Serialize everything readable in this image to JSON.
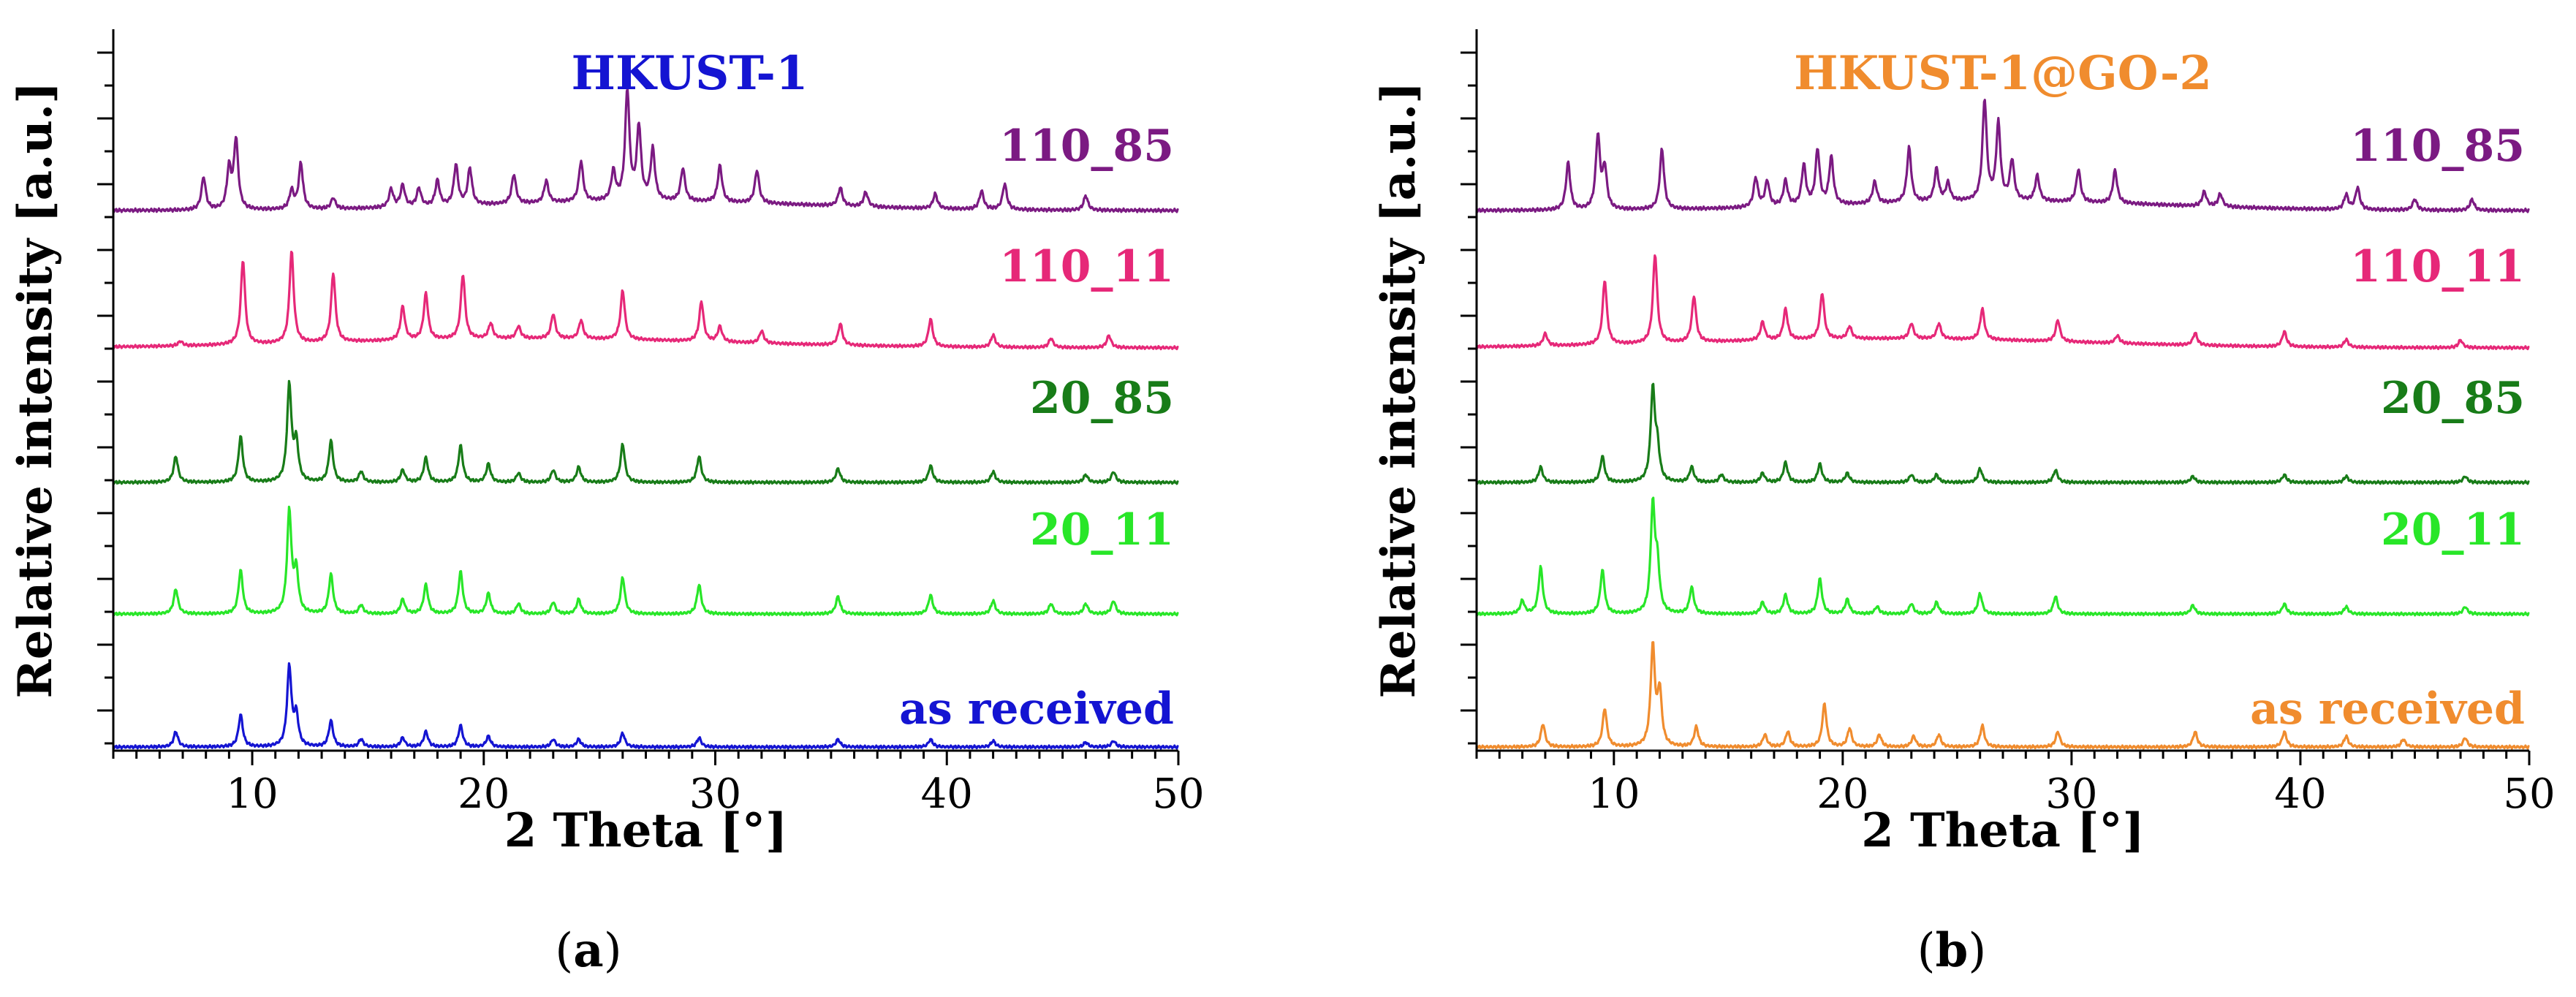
{
  "chart_data": [
    {
      "type": "line",
      "panel_caption": {
        "open": "(",
        "letter": "a",
        "close": ")"
      },
      "title": "HKUST-1",
      "title_color": "#1414d2",
      "xlabel": "2 Theta [°]",
      "ylabel": "Relative intensity [a.u.]",
      "xlim": [
        4,
        50
      ],
      "xticks": [
        10,
        20,
        30,
        40,
        50
      ],
      "series": [
        {
          "name": "110_85",
          "color": "#7b1a82",
          "baseline": 0.82,
          "peaks": [
            [
              7.9,
              0.18
            ],
            [
              9.3,
              0.38
            ],
            [
              9.0,
              0.22
            ],
            [
              11.7,
              0.1
            ],
            [
              12.1,
              0.25
            ],
            [
              13.5,
              0.06
            ],
            [
              16.0,
              0.1
            ],
            [
              16.5,
              0.12
            ],
            [
              17.2,
              0.1
            ],
            [
              18.0,
              0.14
            ],
            [
              18.8,
              0.22
            ],
            [
              19.4,
              0.2
            ],
            [
              21.3,
              0.16
            ],
            [
              22.7,
              0.12
            ],
            [
              24.2,
              0.22
            ],
            [
              25.6,
              0.16
            ],
            [
              26.2,
              0.6
            ],
            [
              26.7,
              0.4
            ],
            [
              27.3,
              0.28
            ],
            [
              28.6,
              0.18
            ],
            [
              30.2,
              0.2
            ],
            [
              31.8,
              0.18
            ],
            [
              35.4,
              0.1
            ],
            [
              36.5,
              0.08
            ],
            [
              39.5,
              0.08
            ],
            [
              41.5,
              0.1
            ],
            [
              42.5,
              0.14
            ],
            [
              46.0,
              0.08
            ]
          ]
        },
        {
          "name": "110_11",
          "color": "#e62878",
          "baseline": 0.62,
          "peaks": [
            [
              6.9,
              0.03
            ],
            [
              9.6,
              0.55
            ],
            [
              11.7,
              0.6
            ],
            [
              13.5,
              0.45
            ],
            [
              16.5,
              0.22
            ],
            [
              17.5,
              0.3
            ],
            [
              19.1,
              0.42
            ],
            [
              20.3,
              0.1
            ],
            [
              21.5,
              0.08
            ],
            [
              23.0,
              0.16
            ],
            [
              24.2,
              0.12
            ],
            [
              26.0,
              0.32
            ],
            [
              29.4,
              0.26
            ],
            [
              30.2,
              0.1
            ],
            [
              32.0,
              0.08
            ],
            [
              35.4,
              0.14
            ],
            [
              39.3,
              0.18
            ],
            [
              42.0,
              0.08
            ],
            [
              44.5,
              0.06
            ],
            [
              47.0,
              0.08
            ]
          ]
        },
        {
          "name": "20_85",
          "color": "#187c18",
          "baseline": 0.41,
          "peaks": [
            [
              6.7,
              0.17
            ],
            [
              9.5,
              0.3
            ],
            [
              11.6,
              0.63
            ],
            [
              11.9,
              0.25
            ],
            [
              13.4,
              0.27
            ],
            [
              14.7,
              0.07
            ],
            [
              16.5,
              0.08
            ],
            [
              17.5,
              0.16
            ],
            [
              19.0,
              0.24
            ],
            [
              20.2,
              0.12
            ],
            [
              21.5,
              0.06
            ],
            [
              23.0,
              0.08
            ],
            [
              24.1,
              0.1
            ],
            [
              26.0,
              0.25
            ],
            [
              29.3,
              0.17
            ],
            [
              35.3,
              0.09
            ],
            [
              39.3,
              0.11
            ],
            [
              42.0,
              0.07
            ],
            [
              46.0,
              0.05
            ],
            [
              47.2,
              0.07
            ]
          ]
        },
        {
          "name": "20_11",
          "color": "#28e628",
          "baseline": 0.21,
          "peaks": [
            [
              6.7,
              0.17
            ],
            [
              9.5,
              0.3
            ],
            [
              11.6,
              0.7
            ],
            [
              11.9,
              0.28
            ],
            [
              13.4,
              0.27
            ],
            [
              14.7,
              0.06
            ],
            [
              16.5,
              0.1
            ],
            [
              17.5,
              0.2
            ],
            [
              19.0,
              0.29
            ],
            [
              20.2,
              0.14
            ],
            [
              21.5,
              0.07
            ],
            [
              23.0,
              0.08
            ],
            [
              24.1,
              0.1
            ],
            [
              26.0,
              0.25
            ],
            [
              29.3,
              0.2
            ],
            [
              35.3,
              0.12
            ],
            [
              39.3,
              0.13
            ],
            [
              42.0,
              0.09
            ],
            [
              44.5,
              0.07
            ],
            [
              46.0,
              0.07
            ],
            [
              47.2,
              0.09
            ]
          ]
        },
        {
          "name": "as received",
          "color": "#1414d2",
          "baseline": 0.0,
          "peaks": [
            [
              6.7,
              0.1
            ],
            [
              9.5,
              0.21
            ],
            [
              11.6,
              0.52
            ],
            [
              11.9,
              0.2
            ],
            [
              13.4,
              0.17
            ],
            [
              14.7,
              0.05
            ],
            [
              16.5,
              0.06
            ],
            [
              17.5,
              0.1
            ],
            [
              19.0,
              0.14
            ],
            [
              20.2,
              0.07
            ],
            [
              23.0,
              0.05
            ],
            [
              24.1,
              0.05
            ],
            [
              26.0,
              0.09
            ],
            [
              29.3,
              0.06
            ],
            [
              35.3,
              0.05
            ],
            [
              39.3,
              0.05
            ],
            [
              42.0,
              0.04
            ],
            [
              46.0,
              0.03
            ],
            [
              47.2,
              0.04
            ]
          ]
        }
      ]
    },
    {
      "type": "line",
      "panel_caption": {
        "open": "(",
        "letter": "b",
        "close": ")"
      },
      "title": "HKUST-1@GO-2",
      "title_color": "#f08c2e",
      "xlabel": "2 Theta [°]",
      "ylabel": "Relative intensity [a.u.]",
      "xlim": [
        4,
        50
      ],
      "xticks": [
        10,
        20,
        30,
        40,
        50
      ],
      "series": [
        {
          "name": "110_85",
          "color": "#7b1a82",
          "baseline": 0.82,
          "peaks": [
            [
              8.0,
              0.26
            ],
            [
              9.3,
              0.4
            ],
            [
              9.6,
              0.22
            ],
            [
              12.1,
              0.33
            ],
            [
              16.2,
              0.16
            ],
            [
              16.7,
              0.14
            ],
            [
              17.5,
              0.14
            ],
            [
              18.3,
              0.22
            ],
            [
              18.9,
              0.3
            ],
            [
              19.5,
              0.26
            ],
            [
              21.4,
              0.12
            ],
            [
              22.9,
              0.3
            ],
            [
              24.1,
              0.18
            ],
            [
              24.6,
              0.1
            ],
            [
              26.2,
              0.55
            ],
            [
              26.8,
              0.42
            ],
            [
              27.4,
              0.22
            ],
            [
              28.5,
              0.14
            ],
            [
              30.3,
              0.18
            ],
            [
              31.9,
              0.18
            ],
            [
              35.8,
              0.08
            ],
            [
              36.5,
              0.07
            ],
            [
              42.0,
              0.08
            ],
            [
              42.5,
              0.12
            ],
            [
              45.0,
              0.06
            ],
            [
              47.5,
              0.06
            ]
          ]
        },
        {
          "name": "110_11",
          "color": "#e62878",
          "baseline": 0.62,
          "peaks": [
            [
              7.0,
              0.08
            ],
            [
              9.6,
              0.42
            ],
            [
              11.8,
              0.58
            ],
            [
              13.5,
              0.3
            ],
            [
              16.5,
              0.12
            ],
            [
              17.5,
              0.2
            ],
            [
              19.1,
              0.3
            ],
            [
              20.3,
              0.08
            ],
            [
              23.0,
              0.1
            ],
            [
              24.2,
              0.1
            ],
            [
              26.1,
              0.2
            ],
            [
              29.4,
              0.14
            ],
            [
              32.0,
              0.05
            ],
            [
              35.4,
              0.08
            ],
            [
              39.3,
              0.1
            ],
            [
              42.0,
              0.05
            ],
            [
              47.0,
              0.05
            ]
          ]
        },
        {
          "name": "20_85",
          "color": "#187c18",
          "baseline": 0.41,
          "peaks": [
            [
              6.8,
              0.1
            ],
            [
              9.5,
              0.17
            ],
            [
              11.7,
              0.6
            ],
            [
              11.9,
              0.2
            ],
            [
              13.4,
              0.1
            ],
            [
              14.7,
              0.05
            ],
            [
              16.5,
              0.06
            ],
            [
              17.5,
              0.13
            ],
            [
              19.0,
              0.12
            ],
            [
              20.2,
              0.06
            ],
            [
              23.0,
              0.05
            ],
            [
              24.1,
              0.05
            ],
            [
              26.0,
              0.09
            ],
            [
              29.3,
              0.08
            ],
            [
              35.3,
              0.04
            ],
            [
              39.3,
              0.05
            ],
            [
              42.0,
              0.04
            ],
            [
              47.2,
              0.04
            ]
          ]
        },
        {
          "name": "20_11",
          "color": "#28e628",
          "baseline": 0.21,
          "peaks": [
            [
              6.0,
              0.09
            ],
            [
              6.8,
              0.32
            ],
            [
              9.5,
              0.3
            ],
            [
              11.7,
              0.73
            ],
            [
              11.9,
              0.3
            ],
            [
              13.4,
              0.18
            ],
            [
              16.5,
              0.08
            ],
            [
              17.5,
              0.13
            ],
            [
              19.0,
              0.24
            ],
            [
              20.2,
              0.1
            ],
            [
              21.5,
              0.05
            ],
            [
              23.0,
              0.07
            ],
            [
              24.1,
              0.08
            ],
            [
              26.0,
              0.14
            ],
            [
              29.3,
              0.12
            ],
            [
              35.3,
              0.06
            ],
            [
              39.3,
              0.07
            ],
            [
              42.0,
              0.05
            ],
            [
              47.2,
              0.05
            ]
          ]
        },
        {
          "name": "as received",
          "color": "#f08c2e",
          "baseline": 0.0,
          "peaks": [
            [
              6.9,
              0.15
            ],
            [
              9.6,
              0.25
            ],
            [
              11.7,
              0.65
            ],
            [
              12.0,
              0.35
            ],
            [
              13.6,
              0.13
            ],
            [
              16.6,
              0.08
            ],
            [
              17.6,
              0.1
            ],
            [
              19.2,
              0.28
            ],
            [
              20.3,
              0.12
            ],
            [
              21.6,
              0.08
            ],
            [
              23.1,
              0.07
            ],
            [
              24.2,
              0.08
            ],
            [
              26.1,
              0.14
            ],
            [
              29.4,
              0.1
            ],
            [
              35.4,
              0.1
            ],
            [
              39.3,
              0.1
            ],
            [
              42.0,
              0.07
            ],
            [
              44.5,
              0.05
            ],
            [
              47.2,
              0.06
            ]
          ]
        }
      ]
    }
  ]
}
